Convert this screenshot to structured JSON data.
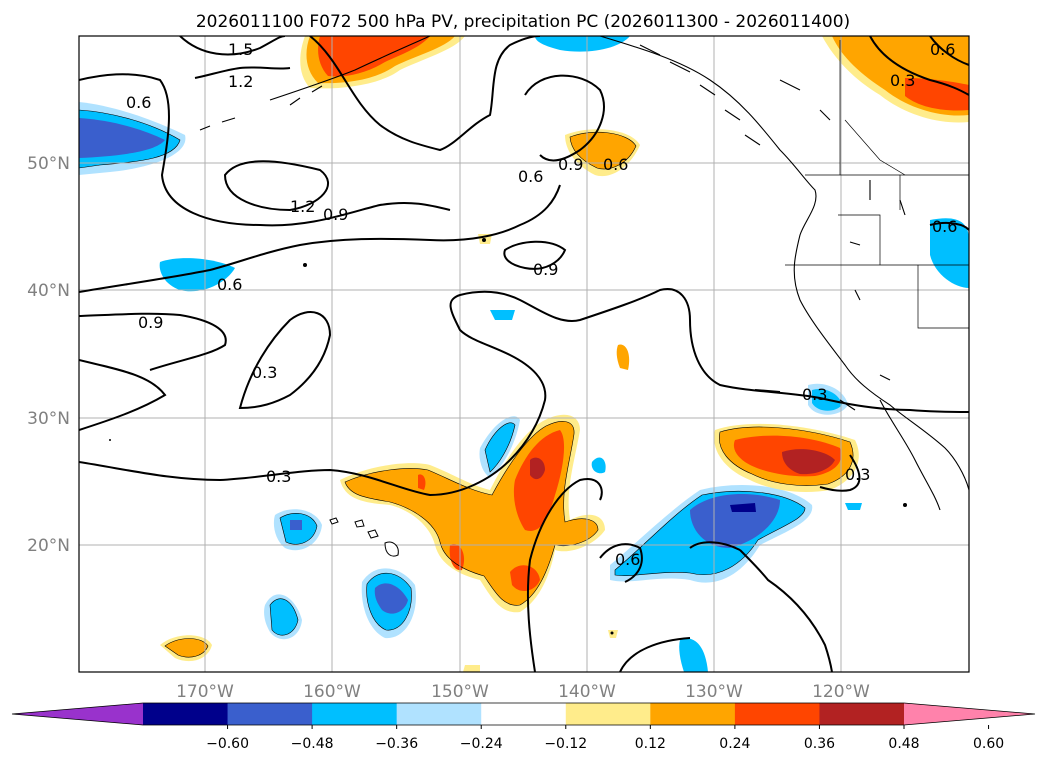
{
  "title": "2026011100 F072 500 hPa PV, precipitation PC (2026011300 - 2026011400)",
  "map": {
    "lat_labels": [
      "50°N",
      "40°N",
      "30°N",
      "20°N"
    ],
    "lon_labels": [
      "170°W",
      "160°W",
      "150°W",
      "140°W",
      "130°W",
      "120°W"
    ],
    "contour_labels": [
      "1.5",
      "1.2",
      "0.6",
      "1.2",
      "0.9",
      "0.6",
      "0.9",
      "0.6",
      "0.9",
      "0.6",
      "0.9",
      "0.3",
      "0.3",
      "0.3",
      "0.3",
      "0.6",
      "0.6",
      "0.3",
      "0.6"
    ]
  },
  "colorbar": {
    "ticks": [
      "−0.60",
      "−0.48",
      "−0.36",
      "−0.24",
      "−0.12",
      "0.12",
      "0.24",
      "0.36",
      "0.48",
      "0.60"
    ],
    "colors": [
      "#9932cc",
      "#00008b",
      "#3a5fcd",
      "#00bfff",
      "#b0e2ff",
      "#ffffff",
      "#ffec8b",
      "#ffa500",
      "#ff4500",
      "#b22222",
      "#ff82ab"
    ]
  },
  "colors": {
    "neg_strong": "#3a5fcd",
    "neg_mid": "#00bfff",
    "neg_weak": "#b0e2ff",
    "pos_weak": "#ffec8b",
    "pos_mid": "#ffa500",
    "pos_strong": "#ff4500",
    "pos_max": "#b22222",
    "neg_max": "#00008b"
  }
}
